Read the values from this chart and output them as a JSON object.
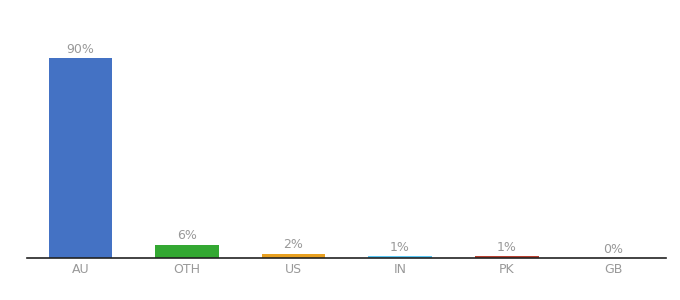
{
  "categories": [
    "AU",
    "OTH",
    "US",
    "IN",
    "PK",
    "GB"
  ],
  "values": [
    90,
    6,
    2,
    1,
    1,
    0
  ],
  "labels": [
    "90%",
    "6%",
    "2%",
    "1%",
    "1%",
    "0%"
  ],
  "bar_colors": [
    "#4472c4",
    "#33a832",
    "#e8a020",
    "#5bc8f5",
    "#b84030",
    "#cccccc"
  ],
  "background_color": "#ffffff",
  "ylim": [
    0,
    100
  ],
  "label_fontsize": 9,
  "tick_fontsize": 9,
  "label_color": "#999999"
}
